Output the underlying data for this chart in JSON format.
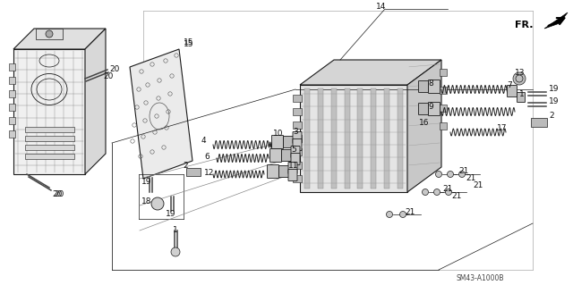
{
  "background_color": "#ffffff",
  "fig_width": 6.4,
  "fig_height": 3.19,
  "dpi": 100,
  "watermark": "SM43-A1000B",
  "fr_label": "FR.",
  "line_color": "#1a1a1a",
  "text_color": "#111111",
  "gray_fill": "#c8c8c8",
  "dark_gray": "#888888",
  "light_gray": "#e0e0e0"
}
